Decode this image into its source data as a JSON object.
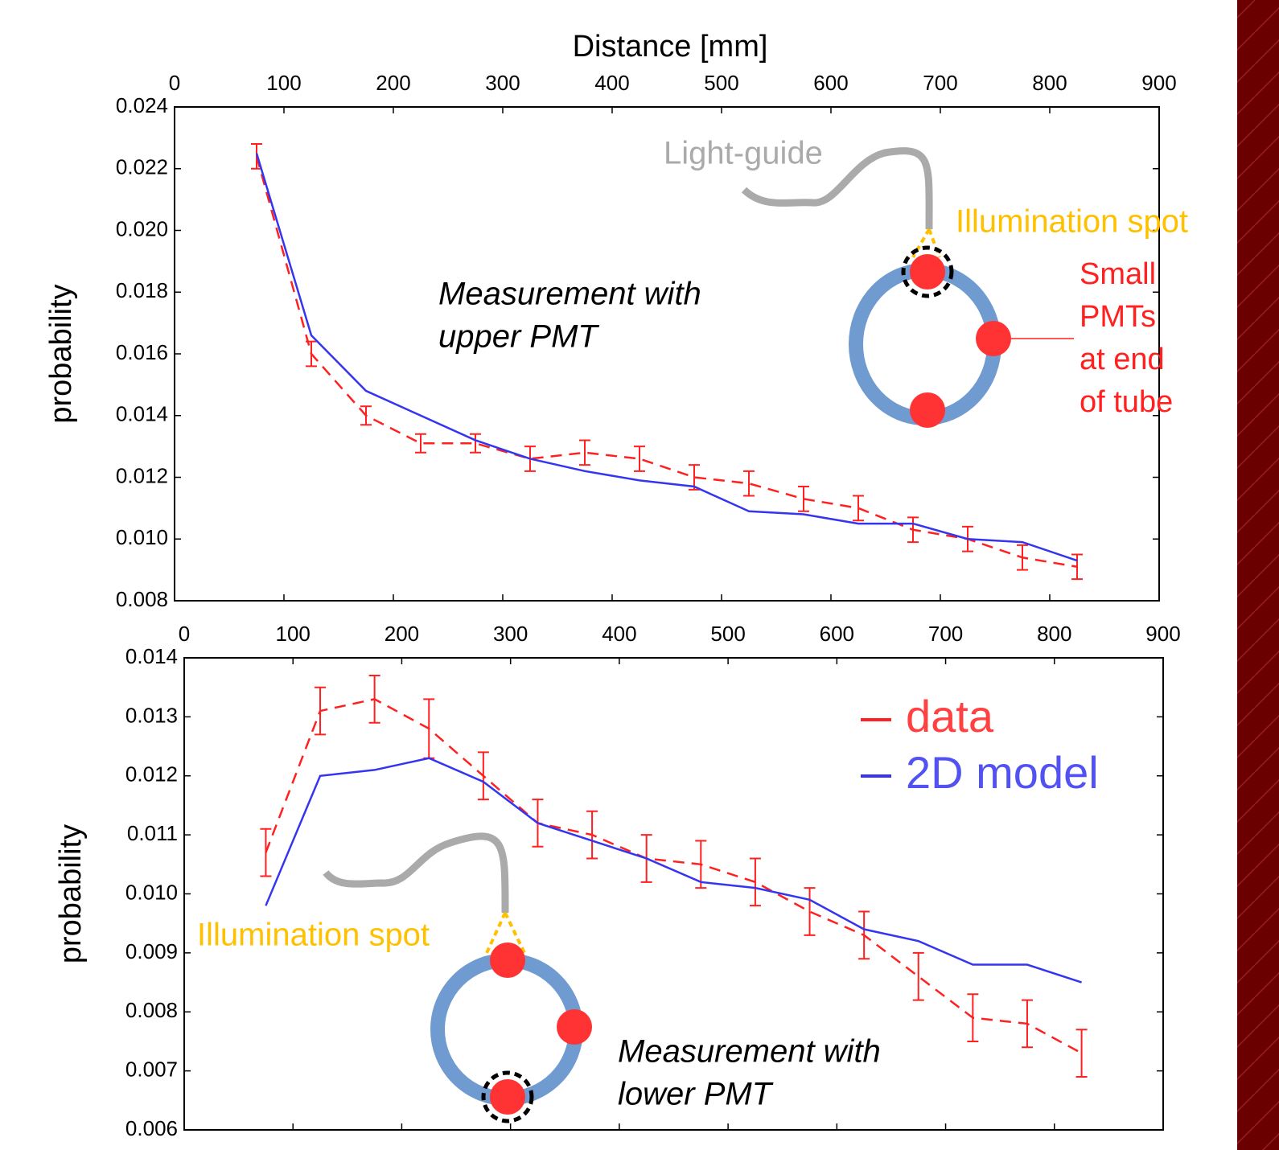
{
  "chart_data": [
    {
      "type": "line",
      "xlabel": "Distance [mm]",
      "ylabel": "probability",
      "x": [
        75,
        125,
        175,
        225,
        275,
        325,
        375,
        425,
        475,
        525,
        575,
        625,
        675,
        725,
        775,
        825
      ],
      "xlim": [
        0,
        900
      ],
      "xticks": [
        0,
        100,
        200,
        300,
        400,
        500,
        600,
        700,
        800,
        900
      ],
      "ylim": [
        0.008,
        0.024
      ],
      "yticks": [
        {
          "value": 0.008,
          "label": "0.008"
        },
        {
          "value": 0.01,
          "label": "0.010"
        },
        {
          "value": 0.012,
          "label": "0.012"
        },
        {
          "value": 0.014,
          "label": "0.014"
        },
        {
          "value": 0.016,
          "label": "0.016"
        },
        {
          "value": 0.018,
          "label": "0.018"
        },
        {
          "value": 0.02,
          "label": "0.020"
        },
        {
          "value": 0.022,
          "label": "0.022"
        },
        {
          "value": 0.024,
          "label": "0.024"
        }
      ],
      "series": [
        {
          "name": "data",
          "color": "#ff2020",
          "dashed": true,
          "values": [
            0.0224,
            0.016,
            0.014,
            0.0131,
            0.0131,
            0.0126,
            0.0128,
            0.0126,
            0.012,
            0.0118,
            0.0113,
            0.011,
            0.0103,
            0.01,
            0.0094,
            0.0091
          ],
          "errors": [
            0.0004,
            0.0004,
            0.0003,
            0.0003,
            0.0003,
            0.0004,
            0.0004,
            0.0004,
            0.0004,
            0.0004,
            0.0004,
            0.0004,
            0.0004,
            0.0004,
            0.0004,
            0.0004
          ]
        },
        {
          "name": "2D model",
          "color": "#3535f0",
          "values": [
            0.0225,
            0.0166,
            0.0148,
            0.014,
            0.0132,
            0.0126,
            0.0122,
            0.0119,
            0.0117,
            0.0109,
            0.0108,
            0.0105,
            0.0105,
            0.01,
            0.0099,
            0.0093
          ]
        }
      ],
      "annotations": [
        {
          "lines": [
            "Light-guide"
          ],
          "color": "#aaaaaa"
        },
        {
          "lines": [
            "Illumination spot"
          ],
          "color": "#ffc000"
        },
        {
          "lines": [
            "Small",
            "PMTs",
            "at end",
            "of tube"
          ],
          "color": "#ff2020"
        },
        {
          "lines": [
            "Measurement with",
            "upper PMT"
          ],
          "color": "#000000"
        }
      ]
    },
    {
      "type": "line",
      "ylabel": "probability",
      "x": [
        75,
        125,
        175,
        225,
        275,
        325,
        375,
        425,
        475,
        525,
        575,
        625,
        675,
        725,
        775,
        825
      ],
      "xlim": [
        0,
        900
      ],
      "xticks": [
        0,
        100,
        200,
        300,
        400,
        500,
        600,
        700,
        800,
        900
      ],
      "ylim": [
        0.006,
        0.014
      ],
      "yticks": [
        {
          "value": 0.006,
          "label": "0.006"
        },
        {
          "value": 0.007,
          "label": "0.007"
        },
        {
          "value": 0.008,
          "label": "0.008"
        },
        {
          "value": 0.009,
          "label": "0.009"
        },
        {
          "value": 0.01,
          "label": "0.010"
        },
        {
          "value": 0.011,
          "label": "0.011"
        },
        {
          "value": 0.012,
          "label": "0.012"
        },
        {
          "value": 0.013,
          "label": "0.013"
        },
        {
          "value": 0.014,
          "label": "0.014"
        }
      ],
      "legend": "upper right",
      "series": [
        {
          "name": "data",
          "color": "#ff2020",
          "dashed": true,
          "values": [
            0.0107,
            0.0131,
            0.0133,
            0.0128,
            0.012,
            0.0112,
            0.011,
            0.0106,
            0.0105,
            0.0102,
            0.0097,
            0.0093,
            0.0086,
            0.0079,
            0.0078,
            0.0073
          ],
          "errors": [
            0.0004,
            0.0004,
            0.0004,
            0.0005,
            0.0004,
            0.0004,
            0.0004,
            0.0004,
            0.0004,
            0.0004,
            0.0004,
            0.0004,
            0.0004,
            0.0004,
            0.0004,
            0.0004
          ]
        },
        {
          "name": "2D model",
          "color": "#3535f0",
          "values": [
            0.0098,
            0.012,
            0.0121,
            0.0123,
            0.0119,
            0.0112,
            0.0109,
            0.0106,
            0.0102,
            0.0101,
            0.0099,
            0.0094,
            0.0092,
            0.0088,
            0.0088,
            0.0085
          ]
        }
      ],
      "annotations": [
        {
          "lines": [
            "Illumination spot"
          ],
          "color": "#ffc000"
        },
        {
          "lines": [
            "Measurement with",
            "lower PMT"
          ],
          "color": "#000000"
        }
      ]
    }
  ]
}
